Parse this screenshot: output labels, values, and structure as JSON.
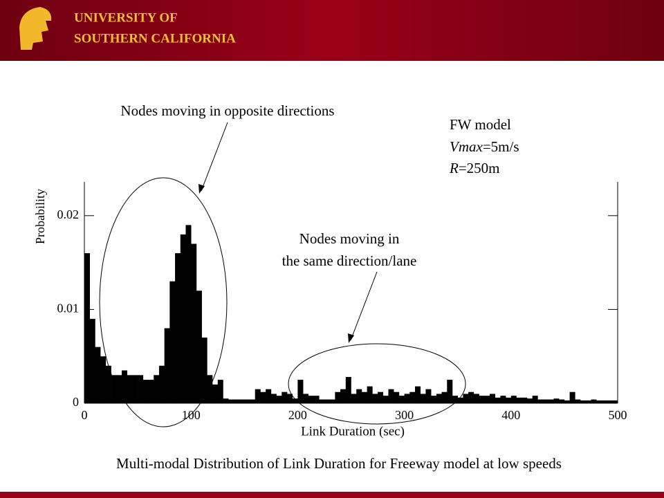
{
  "header": {
    "line1": "UNIVERSITY OF",
    "line2": "SOUTHERN CALIFORNIA"
  },
  "chart_data": {
    "type": "histogram",
    "caption": "Multi-modal Distribution of Link Duration for Freeway model at low speeds",
    "x_label": "Link Duration (sec)",
    "y_label": "Probability",
    "annotations": {
      "opposite": "Nodes moving in opposite directions",
      "same_line1": "Nodes moving in",
      "same_line2": "the same direction/lane",
      "model": "FW model",
      "vmax": [
        "Vmax",
        "=5m/s"
      ],
      "range": [
        "R",
        "=250m"
      ]
    },
    "color": "#000000",
    "xlim": [
      0,
      500
    ],
    "xticks": [
      0,
      100,
      200,
      300,
      400,
      500
    ],
    "ylim": [
      0,
      0.0236
    ],
    "yticks": [
      0,
      0.01,
      0.02
    ],
    "bins": [
      0,
      5,
      10,
      15,
      20,
      25,
      30,
      35,
      40,
      45,
      50,
      55,
      60,
      65,
      70,
      75,
      80,
      85,
      90,
      95,
      100,
      105,
      110,
      115,
      120,
      125,
      130,
      135,
      140,
      145,
      150,
      155,
      160,
      165,
      170,
      175,
      180,
      185,
      190,
      195,
      200,
      205,
      210,
      215,
      220,
      225,
      230,
      235,
      240,
      245,
      250,
      255,
      260,
      265,
      270,
      275,
      280,
      285,
      290,
      295,
      300,
      305,
      310,
      315,
      320,
      325,
      330,
      335,
      340,
      345,
      350,
      355,
      360,
      365,
      370,
      375,
      380,
      385,
      390,
      395,
      400,
      405,
      410,
      415,
      420,
      425,
      430,
      435,
      440,
      445,
      450,
      455,
      460,
      465,
      470,
      475,
      480,
      485,
      490,
      495,
      500
    ],
    "counts": [
      0.016,
      0.009,
      0.006,
      0.005,
      0.004,
      0.003,
      0.003,
      0.0035,
      0.003,
      0.003,
      0.003,
      0.0025,
      0.0025,
      0.003,
      0.004,
      0.008,
      0.013,
      0.016,
      0.018,
      0.019,
      0.017,
      0.012,
      0.007,
      0.003,
      0.002,
      0.0025,
      0.0005,
      0.0004,
      0.0004,
      0.0004,
      0.0004,
      0.0004,
      0.0015,
      0.0012,
      0.0015,
      0.001,
      0.0008,
      0.0012,
      0.001,
      0.0005,
      0.0025,
      0.001,
      0.0008,
      0.0008,
      0.0004,
      0.0004,
      0.0004,
      0.0012,
      0.0015,
      0.0028,
      0.001,
      0.0015,
      0.0012,
      0.0018,
      0.001,
      0.0012,
      0.0008,
      0.0015,
      0.0012,
      0.0008,
      0.001,
      0.0012,
      0.0018,
      0.001,
      0.0015,
      0.0008,
      0.001,
      0.0012,
      0.0025,
      0.0008,
      0.0006,
      0.001,
      0.0012,
      0.001,
      0.0008,
      0.0008,
      0.001,
      0.0006,
      0.0008,
      0.0006,
      0.0008,
      0.0006,
      0.0006,
      0.0005,
      0.0008,
      0.0004,
      0.0004,
      0.0004,
      0.0005,
      0.0004,
      0.0003,
      0.0012,
      0.0004,
      0.0003,
      0.0003,
      0.0004,
      0.0003,
      0.0003,
      0.0003,
      0.0003
    ]
  }
}
